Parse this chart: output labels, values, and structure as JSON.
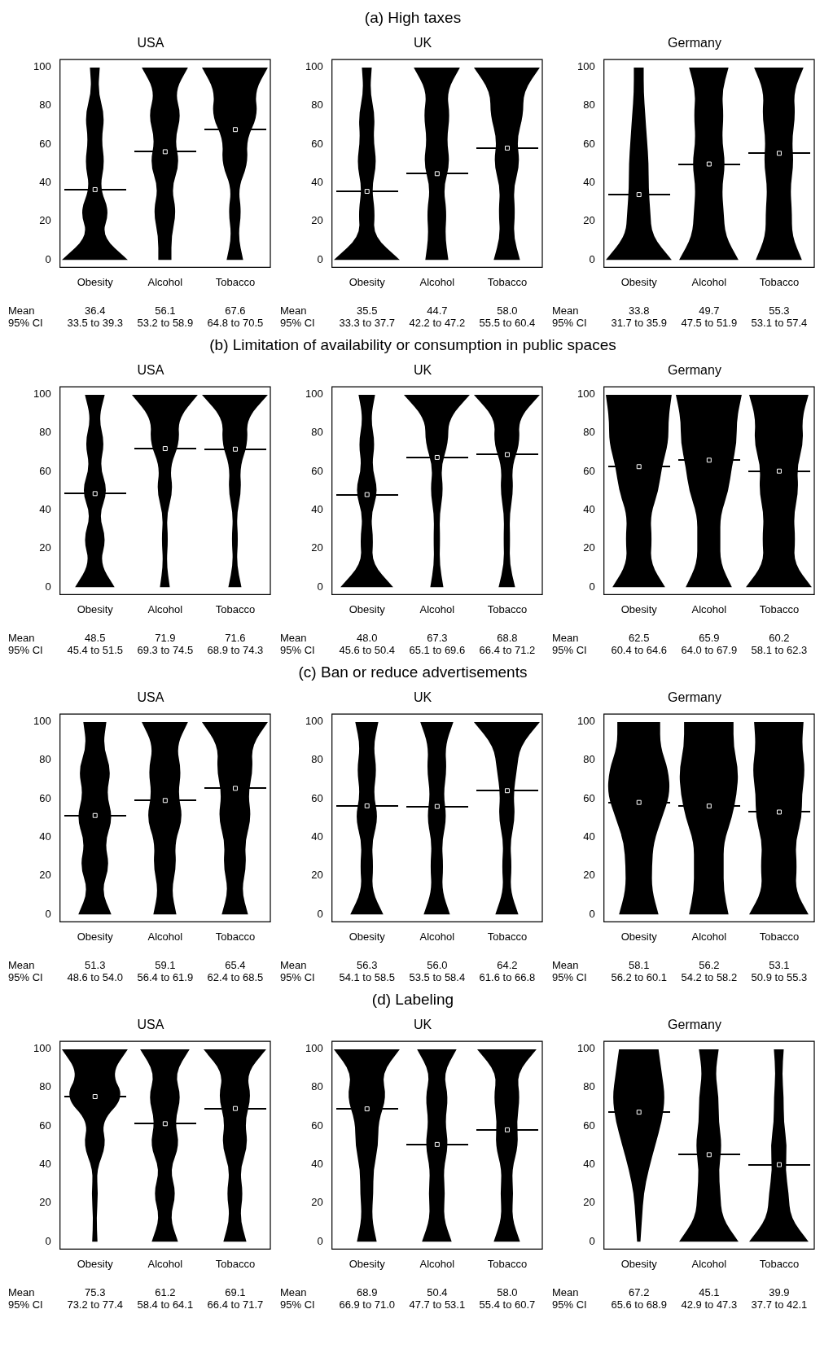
{
  "chart_data": [
    {
      "type": "scatter",
      "subtitle": "USA",
      "categories": [
        "Obesity",
        "Alcohol",
        "Tobacco"
      ],
      "ylim": [
        -4,
        104
      ],
      "yticks": [
        0,
        20,
        40,
        60,
        80,
        100
      ],
      "annotations": [
        "Mean",
        "95% CI",
        "33.5 to 39.3",
        "53.2 to 58.9",
        "64.8 to 70.5"
      ],
      "series": [
        {
          "type": "scatter",
          "color": "#000000",
          "values": [
            36.4,
            56.1,
            67.6
          ],
          "value_labels": [
            "36.4",
            "56.1",
            "67.6"
          ]
        }
      ]
    },
    {
      "type": "scatter",
      "title": "(a) High taxes",
      "subtitle": "UK",
      "categories": [
        "Obesity",
        "Alcohol",
        "Tobacco"
      ],
      "ylim": [
        -4,
        104
      ],
      "yticks": [
        0,
        20,
        40,
        60,
        80,
        100
      ],
      "annotations": [
        "Mean",
        "95% CI",
        "33.3 to 37.7",
        "42.2 to 47.2",
        "55.5 to 60.4"
      ],
      "series": [
        {
          "type": "scatter",
          "color": "#000000",
          "values": [
            35.5,
            44.7,
            58.0
          ],
          "value_labels": [
            "35.5",
            "44.7",
            "58.0"
          ]
        }
      ]
    },
    {
      "type": "scatter",
      "subtitle": "Germany",
      "categories": [
        "Obesity",
        "Alcohol",
        "Tobacco"
      ],
      "ylim": [
        -4,
        104
      ],
      "yticks": [
        0,
        20,
        40,
        60,
        80,
        100
      ],
      "annotations": [
        "Mean",
        "95% CI",
        "31.7 to 35.9",
        "47.5 to 51.9",
        "53.1 to 57.4"
      ],
      "series": [
        {
          "type": "scatter",
          "color": "#000000",
          "values": [
            33.8,
            49.7,
            55.3
          ],
          "value_labels": [
            "33.8",
            "49.7",
            "55.3"
          ]
        }
      ]
    },
    {
      "type": "scatter",
      "subtitle": "USA",
      "categories": [
        "Obesity",
        "Alcohol",
        "Tobacco"
      ],
      "ylim": [
        -4,
        104
      ],
      "yticks": [
        0,
        20,
        40,
        60,
        80,
        100
      ],
      "annotations": [
        "Mean",
        "95% CI",
        "45.4 to 51.5",
        "69.3 to 74.5",
        "68.9 to 74.3"
      ],
      "series": [
        {
          "type": "scatter",
          "color": "#000000",
          "values": [
            48.5,
            71.9,
            71.6
          ],
          "value_labels": [
            "48.5",
            "71.9",
            "71.6"
          ]
        }
      ]
    },
    {
      "type": "scatter",
      "title": "(b) Limitation of availability or consumption in public spaces",
      "subtitle": "UK",
      "categories": [
        "Obesity",
        "Alcohol",
        "Tobacco"
      ],
      "ylim": [
        -4,
        104
      ],
      "yticks": [
        0,
        20,
        40,
        60,
        80,
        100
      ],
      "annotations": [
        "Mean",
        "95% CI",
        "45.6 to 50.4",
        "65.1 to 69.6",
        "66.4 to 71.2"
      ],
      "series": [
        {
          "type": "scatter",
          "color": "#000000",
          "values": [
            48.0,
            67.3,
            68.8
          ],
          "value_labels": [
            "48.0",
            "67.3",
            "68.8"
          ]
        }
      ]
    },
    {
      "type": "scatter",
      "subtitle": "Germany",
      "categories": [
        "Obesity",
        "Alcohol",
        "Tobacco"
      ],
      "ylim": [
        -4,
        104
      ],
      "yticks": [
        0,
        20,
        40,
        60,
        80,
        100
      ],
      "annotations": [
        "Mean",
        "95% CI",
        "60.4 to 64.6",
        "64.0 to 67.9",
        "58.1 to 62.3"
      ],
      "series": [
        {
          "type": "scatter",
          "color": "#000000",
          "values": [
            62.5,
            65.9,
            60.2
          ],
          "value_labels": [
            "62.5",
            "65.9",
            "60.2"
          ]
        }
      ]
    },
    {
      "type": "scatter",
      "subtitle": "USA",
      "categories": [
        "Obesity",
        "Alcohol",
        "Tobacco"
      ],
      "ylim": [
        -4,
        104
      ],
      "yticks": [
        0,
        20,
        40,
        60,
        80,
        100
      ],
      "annotations": [
        "Mean",
        "95% CI",
        "48.6 to 54.0",
        "56.4 to 61.9",
        "62.4 to 68.5"
      ],
      "series": [
        {
          "type": "scatter",
          "color": "#000000",
          "values": [
            51.3,
            59.1,
            65.4
          ],
          "value_labels": [
            "51.3",
            "59.1",
            "65.4"
          ]
        }
      ]
    },
    {
      "type": "scatter",
      "title": "(c) Ban or reduce advertisements",
      "subtitle": "UK",
      "categories": [
        "Obesity",
        "Alcohol",
        "Tobacco"
      ],
      "ylim": [
        -4,
        104
      ],
      "yticks": [
        0,
        20,
        40,
        60,
        80,
        100
      ],
      "annotations": [
        "Mean",
        "95% CI",
        "54.1 to 58.5",
        "53.5 to 58.4",
        "61.6 to 66.8"
      ],
      "series": [
        {
          "type": "scatter",
          "color": "#000000",
          "values": [
            56.3,
            56.0,
            64.2
          ],
          "value_labels": [
            "56.3",
            "56.0",
            "64.2"
          ]
        }
      ]
    },
    {
      "type": "scatter",
      "subtitle": "Germany",
      "categories": [
        "Obesity",
        "Alcohol",
        "Tobacco"
      ],
      "ylim": [
        -4,
        104
      ],
      "yticks": [
        0,
        20,
        40,
        60,
        80,
        100
      ],
      "annotations": [
        "Mean",
        "95% CI",
        "56.2 to 60.1",
        "54.2 to 58.2",
        "50.9 to 55.3"
      ],
      "series": [
        {
          "type": "scatter",
          "color": "#000000",
          "values": [
            58.1,
            56.2,
            53.1
          ],
          "value_labels": [
            "58.1",
            "56.2",
            "53.1"
          ]
        }
      ]
    },
    {
      "type": "scatter",
      "subtitle": "USA",
      "categories": [
        "Obesity",
        "Alcohol",
        "Tobacco"
      ],
      "ylim": [
        -4,
        104
      ],
      "yticks": [
        0,
        20,
        40,
        60,
        80,
        100
      ],
      "annotations": [
        "Mean",
        "95% CI",
        "73.2 to 77.4",
        "58.4 to 64.1",
        "66.4 to 71.7"
      ],
      "series": [
        {
          "type": "scatter",
          "color": "#000000",
          "values": [
            75.3,
            61.2,
            69.1
          ],
          "value_labels": [
            "75.3",
            "61.2",
            "69.1"
          ]
        }
      ]
    },
    {
      "type": "scatter",
      "title": "(d) Labeling",
      "subtitle": "UK",
      "categories": [
        "Obesity",
        "Alcohol",
        "Tobacco"
      ],
      "ylim": [
        -4,
        104
      ],
      "yticks": [
        0,
        20,
        40,
        60,
        80,
        100
      ],
      "annotations": [
        "Mean",
        "95% CI",
        "66.9 to 71.0",
        "47.7 to 53.1",
        "55.4 to 60.7"
      ],
      "series": [
        {
          "type": "scatter",
          "color": "#000000",
          "values": [
            68.9,
            50.4,
            58.0
          ],
          "value_labels": [
            "68.9",
            "50.4",
            "58.0"
          ]
        }
      ]
    },
    {
      "type": "scatter",
      "subtitle": "Germany",
      "categories": [
        "Obesity",
        "Alcohol",
        "Tobacco"
      ],
      "ylim": [
        -4,
        104
      ],
      "yticks": [
        0,
        20,
        40,
        60,
        80,
        100
      ],
      "annotations": [
        "Mean",
        "95% CI",
        "65.6 to 68.9",
        "42.9 to 47.3",
        "37.7 to 42.1"
      ],
      "series": [
        {
          "type": "scatter",
          "color": "#000000",
          "values": [
            67.2,
            45.1,
            39.9
          ],
          "value_labels": [
            "67.2",
            "45.1",
            "39.9"
          ]
        }
      ]
    }
  ]
}
